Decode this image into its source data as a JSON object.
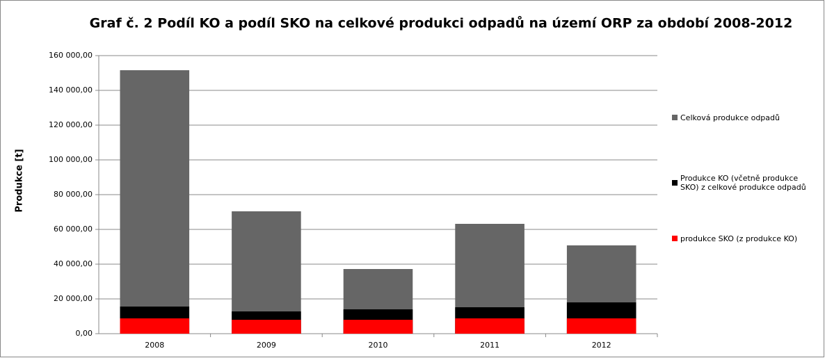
{
  "chart_data": {
    "type": "bar",
    "title": "Graf č. 2 Podíl KO a podíl SKO na celkové produkci odpadů na území ORP za období 2008-2012",
    "y_label": "Produkce [t]",
    "categories": [
      "2008",
      "2009",
      "2010",
      "2011",
      "2012"
    ],
    "series": [
      {
        "name": "Celková produkce odpadů",
        "color": "#666666",
        "values": [
          151600,
          70400,
          37200,
          63200,
          50800
        ]
      },
      {
        "name": "Produkce KO (včetně produkce SKO) z celkové produkce odpadů",
        "color": "#000000",
        "values": [
          15600,
          12800,
          14000,
          15200,
          18000
        ]
      },
      {
        "name": "produkce SKO (z produkce KO)",
        "color": "#ff0000",
        "values": [
          8800,
          8000,
          8000,
          8800,
          8800
        ]
      }
    ],
    "ylim": [
      0,
      160000
    ],
    "yticks": [
      {
        "value": 0,
        "label": "0,00"
      },
      {
        "value": 20000,
        "label": "20 000,00"
      },
      {
        "value": 40000,
        "label": "40 000,00"
      },
      {
        "value": 60000,
        "label": "60 000,00"
      },
      {
        "value": 80000,
        "label": "80 000,00"
      },
      {
        "value": 100000,
        "label": "100 000,00"
      },
      {
        "value": 120000,
        "label": "120 000,00"
      },
      {
        "value": 140000,
        "label": "140 000,00"
      },
      {
        "value": 160000,
        "label": "160 000,00"
      }
    ],
    "grid": true
  }
}
